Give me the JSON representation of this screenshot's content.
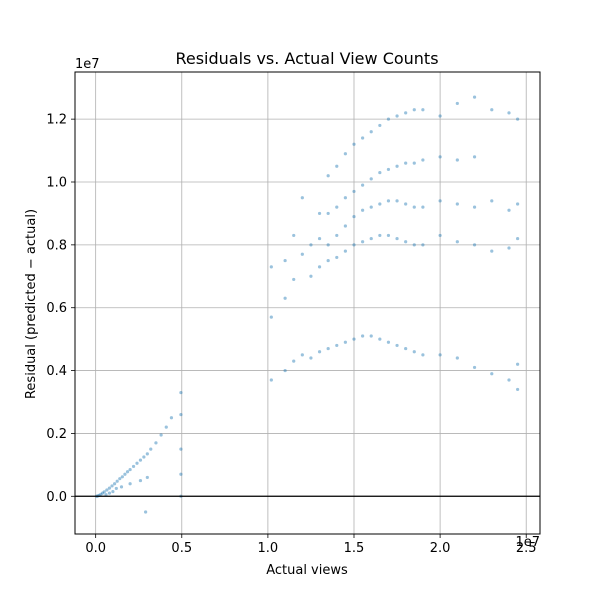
{
  "chart_data": {
    "type": "scatter",
    "title": "Residuals vs. Actual View Counts",
    "xlabel": "Actual views",
    "ylabel": "Residual (predicted − actual)",
    "x_multiplier": "1e7",
    "y_multiplier": "1e7",
    "xlim": [
      -1200000,
      25800000
    ],
    "ylim": [
      -1200000,
      13500000
    ],
    "xticks": [
      0,
      5000000,
      10000000,
      15000000,
      20000000,
      25000000
    ],
    "xtick_labels": [
      "0.0",
      "0.5",
      "1.0",
      "1.5",
      "2.0",
      "2.5"
    ],
    "yticks": [
      0,
      2000000,
      4000000,
      6000000,
      8000000,
      10000000,
      12000000
    ],
    "ytick_labels": [
      "0.0",
      "0.2",
      "0.4",
      "0.6",
      "0.8",
      "1.0",
      "1.2"
    ],
    "grid": true,
    "reference_line_y": 0,
    "point_color": "#1f77b4",
    "point_opacity": 0.45,
    "series": [
      {
        "points": [
          [
            50000,
            0
          ],
          [
            120000,
            10000
          ],
          [
            200000,
            30000
          ],
          [
            300000,
            60000
          ],
          [
            400000,
            100000
          ],
          [
            500000,
            140000
          ],
          [
            650000,
            200000
          ],
          [
            800000,
            260000
          ],
          [
            950000,
            330000
          ],
          [
            1100000,
            400000
          ],
          [
            1250000,
            480000
          ],
          [
            1400000,
            560000
          ],
          [
            1550000,
            620000
          ],
          [
            1700000,
            700000
          ],
          [
            1850000,
            780000
          ],
          [
            2000000,
            850000
          ],
          [
            2200000,
            950000
          ],
          [
            2400000,
            1050000
          ],
          [
            2600000,
            1150000
          ],
          [
            2800000,
            1250000
          ],
          [
            3000000,
            1350000
          ],
          [
            3200000,
            1500000
          ],
          [
            3500000,
            1700000
          ],
          [
            3800000,
            1950000
          ],
          [
            4100000,
            2200000
          ],
          [
            4400000,
            2500000
          ],
          [
            4950000,
            3300000
          ],
          [
            4950000,
            2600000
          ],
          [
            4950000,
            1500000
          ],
          [
            4950000,
            700000
          ],
          [
            4950000,
            0
          ],
          [
            1500000,
            300000
          ],
          [
            2000000,
            400000
          ],
          [
            2600000,
            500000
          ],
          [
            3000000,
            600000
          ],
          [
            2900000,
            -500000
          ],
          [
            800000,
            100000
          ],
          [
            1000000,
            150000
          ],
          [
            1200000,
            250000
          ],
          [
            600000,
            50000
          ],
          [
            10200000,
            5700000
          ],
          [
            10200000,
            7300000
          ],
          [
            10200000,
            3700000
          ],
          [
            11000000,
            7500000
          ],
          [
            11000000,
            6300000
          ],
          [
            11000000,
            4000000
          ],
          [
            11500000,
            8300000
          ],
          [
            11500000,
            6900000
          ],
          [
            11500000,
            4300000
          ],
          [
            12000000,
            9500000
          ],
          [
            12000000,
            7700000
          ],
          [
            12000000,
            4500000
          ],
          [
            12500000,
            8000000
          ],
          [
            12500000,
            7000000
          ],
          [
            12500000,
            4400000
          ],
          [
            13000000,
            9000000
          ],
          [
            13000000,
            8200000
          ],
          [
            13000000,
            7300000
          ],
          [
            13000000,
            4600000
          ],
          [
            13500000,
            10200000
          ],
          [
            13500000,
            9000000
          ],
          [
            13500000,
            8000000
          ],
          [
            13500000,
            7500000
          ],
          [
            13500000,
            4700000
          ],
          [
            14000000,
            10500000
          ],
          [
            14000000,
            9200000
          ],
          [
            14000000,
            8300000
          ],
          [
            14000000,
            7600000
          ],
          [
            14000000,
            4800000
          ],
          [
            14500000,
            10900000
          ],
          [
            14500000,
            9500000
          ],
          [
            14500000,
            8600000
          ],
          [
            14500000,
            7800000
          ],
          [
            14500000,
            4900000
          ],
          [
            15000000,
            11200000
          ],
          [
            15000000,
            9700000
          ],
          [
            15000000,
            8900000
          ],
          [
            15000000,
            8000000
          ],
          [
            15000000,
            5000000
          ],
          [
            15500000,
            11400000
          ],
          [
            15500000,
            9900000
          ],
          [
            15500000,
            9100000
          ],
          [
            15500000,
            8100000
          ],
          [
            15500000,
            5100000
          ],
          [
            16000000,
            11600000
          ],
          [
            16000000,
            10100000
          ],
          [
            16000000,
            9200000
          ],
          [
            16000000,
            8200000
          ],
          [
            16000000,
            5100000
          ],
          [
            16500000,
            11800000
          ],
          [
            16500000,
            10300000
          ],
          [
            16500000,
            9300000
          ],
          [
            16500000,
            8300000
          ],
          [
            16500000,
            5000000
          ],
          [
            17000000,
            12000000
          ],
          [
            17000000,
            10400000
          ],
          [
            17000000,
            9400000
          ],
          [
            17000000,
            8300000
          ],
          [
            17000000,
            4900000
          ],
          [
            17500000,
            12100000
          ],
          [
            17500000,
            10500000
          ],
          [
            17500000,
            9400000
          ],
          [
            17500000,
            8200000
          ],
          [
            17500000,
            4800000
          ],
          [
            18000000,
            12200000
          ],
          [
            18000000,
            10600000
          ],
          [
            18000000,
            9300000
          ],
          [
            18000000,
            8100000
          ],
          [
            18000000,
            4700000
          ],
          [
            18500000,
            12300000
          ],
          [
            18500000,
            10600000
          ],
          [
            18500000,
            9200000
          ],
          [
            18500000,
            8000000
          ],
          [
            18500000,
            4600000
          ],
          [
            19000000,
            12300000
          ],
          [
            19000000,
            10700000
          ],
          [
            19000000,
            9200000
          ],
          [
            19000000,
            8000000
          ],
          [
            19000000,
            4500000
          ],
          [
            20000000,
            12100000
          ],
          [
            20000000,
            10800000
          ],
          [
            20000000,
            9400000
          ],
          [
            20000000,
            8300000
          ],
          [
            20000000,
            4500000
          ],
          [
            21000000,
            12500000
          ],
          [
            21000000,
            10700000
          ],
          [
            21000000,
            9300000
          ],
          [
            21000000,
            8100000
          ],
          [
            21000000,
            4400000
          ],
          [
            22000000,
            12700000
          ],
          [
            22000000,
            10800000
          ],
          [
            22000000,
            9200000
          ],
          [
            22000000,
            8000000
          ],
          [
            22000000,
            4100000
          ],
          [
            23000000,
            12300000
          ],
          [
            23000000,
            9400000
          ],
          [
            23000000,
            7800000
          ],
          [
            23000000,
            3900000
          ],
          [
            24000000,
            12200000
          ],
          [
            24000000,
            9100000
          ],
          [
            24000000,
            7900000
          ],
          [
            24000000,
            3700000
          ],
          [
            24500000,
            12000000
          ],
          [
            24500000,
            9300000
          ],
          [
            24500000,
            8200000
          ],
          [
            24500000,
            4200000
          ],
          [
            24500000,
            3400000
          ]
        ]
      }
    ]
  }
}
